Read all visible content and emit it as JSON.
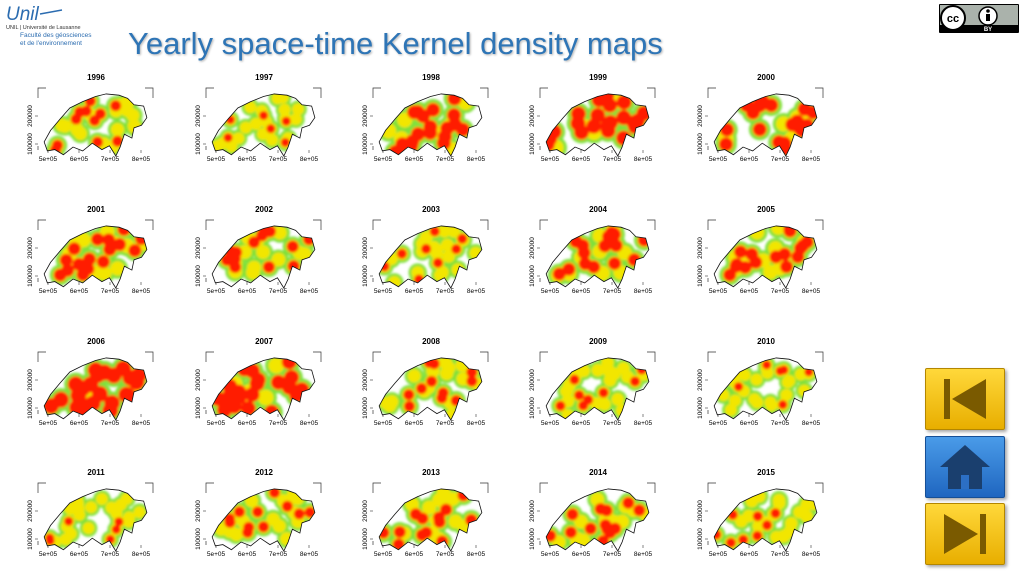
{
  "header": {
    "logo": "Unil",
    "university": "UNIL | Université de Lausanne",
    "faculty_line1": "Faculté des géosciences",
    "faculty_line2": "et de l'environnement",
    "title": "Yearly space-time Kernel density maps",
    "license": "BY"
  },
  "maps": [
    {
      "year": "1996"
    },
    {
      "year": "1997"
    },
    {
      "year": "1998"
    },
    {
      "year": "1999"
    },
    {
      "year": "2000"
    },
    {
      "year": "2001"
    },
    {
      "year": "2002"
    },
    {
      "year": "2003"
    },
    {
      "year": "2004"
    },
    {
      "year": "2005"
    },
    {
      "year": "2006"
    },
    {
      "year": "2007"
    },
    {
      "year": "2008"
    },
    {
      "year": "2009"
    },
    {
      "year": "2010"
    },
    {
      "year": "2011"
    },
    {
      "year": "2012"
    },
    {
      "year": "2013"
    },
    {
      "year": "2014"
    },
    {
      "year": "2015"
    }
  ],
  "axes": {
    "x_ticks": [
      "5e+05",
      "6e+05",
      "7e+05",
      "8e+05"
    ],
    "y_ticks": [
      "100000",
      "200000"
    ]
  }
}
